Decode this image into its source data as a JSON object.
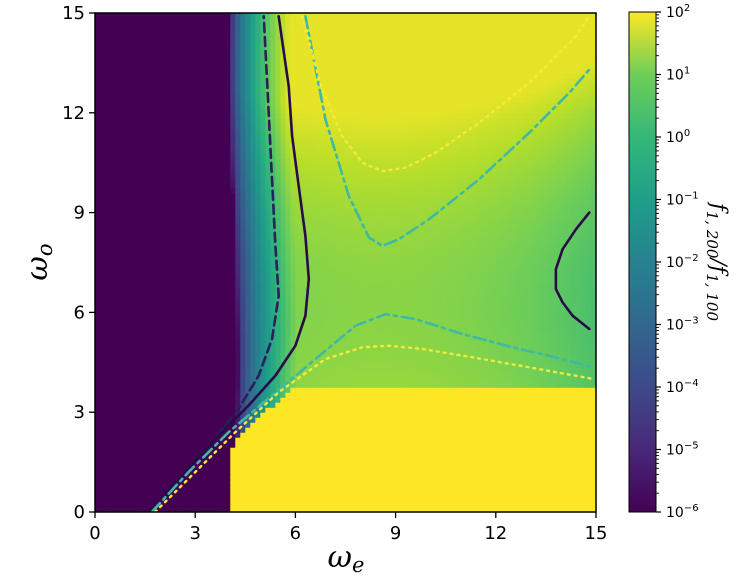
{
  "chart_data": {
    "type": "heatmap",
    "title": "",
    "xlabel": "ω",
    "xlabel_sub": "e",
    "ylabel": "ω",
    "ylabel_sub": "o",
    "xlim": [
      0,
      15
    ],
    "ylim": [
      0,
      15
    ],
    "x_ticks": [
      0,
      3,
      6,
      9,
      12,
      15
    ],
    "y_ticks": [
      0,
      3,
      6,
      9,
      12,
      15
    ],
    "x_tick_labels": [
      "0",
      "3",
      "6",
      "9",
      "12",
      "15"
    ],
    "y_tick_labels": [
      "0",
      "3",
      "6",
      "9",
      "12",
      "15"
    ],
    "colormap": "viridis",
    "colorbar": {
      "label_f": "f",
      "label_num_sub": "1, 200",
      "label_slash": "/",
      "label_den_sub": "1, 100",
      "scale": "log",
      "range": [
        1e-06,
        100
      ],
      "ticks": [
        {
          "base": "10",
          "exp": "2"
        },
        {
          "base": "10",
          "exp": "1"
        },
        {
          "base": "10",
          "exp": "0"
        },
        {
          "base": "10",
          "exp": "−1"
        },
        {
          "base": "10",
          "exp": "−2"
        },
        {
          "base": "10",
          "exp": "−3"
        },
        {
          "base": "10",
          "exp": "−4"
        },
        {
          "base": "10",
          "exp": "−5"
        },
        {
          "base": "10",
          "exp": "−6"
        }
      ]
    },
    "contours": [
      {
        "style": "dashed",
        "color": "#2a1f5a",
        "points": [
          [
            1.7,
            0.1
          ],
          [
            2.6,
            1.1
          ],
          [
            3.5,
            2.1
          ],
          [
            4.3,
            3.1
          ],
          [
            4.9,
            4.1
          ],
          [
            5.3,
            5.2
          ],
          [
            5.5,
            6.5
          ],
          [
            5.4,
            8.0
          ],
          [
            5.3,
            10.0
          ],
          [
            5.2,
            12.0
          ],
          [
            5.1,
            14.0
          ],
          [
            5.05,
            14.9
          ]
        ]
      },
      {
        "style": "solid",
        "color": "#2b0a4a",
        "points": [
          [
            1.6,
            0
          ],
          [
            2.6,
            1.1
          ],
          [
            3.6,
            2.2
          ],
          [
            4.6,
            3.2
          ],
          [
            5.4,
            4.1
          ],
          [
            6.0,
            5.0
          ],
          [
            6.3,
            5.9
          ],
          [
            6.4,
            7.0
          ],
          [
            6.3,
            8.3
          ],
          [
            6.1,
            9.8
          ],
          [
            5.9,
            11.3
          ],
          [
            5.8,
            12.8
          ],
          [
            5.6,
            14.2
          ],
          [
            5.5,
            14.9
          ]
        ]
      },
      {
        "style": "solid",
        "color": "#2b0a4a",
        "points": [
          [
            14.8,
            9.0
          ],
          [
            14.4,
            8.5
          ],
          [
            14.0,
            7.9
          ],
          [
            13.8,
            7.3
          ],
          [
            13.8,
            6.7
          ],
          [
            14.0,
            6.3
          ],
          [
            14.3,
            5.9
          ],
          [
            14.8,
            5.5
          ]
        ]
      },
      {
        "style": "dashdot",
        "color": "#3fb8a4",
        "points": [
          [
            1.7,
            0
          ],
          [
            2.8,
            1.2
          ],
          [
            4.0,
            2.4
          ],
          [
            5.3,
            3.5
          ],
          [
            6.6,
            4.6
          ],
          [
            7.8,
            5.6
          ],
          [
            8.7,
            5.95
          ],
          [
            9.6,
            5.8
          ],
          [
            11.0,
            5.35
          ],
          [
            12.5,
            4.95
          ],
          [
            14.0,
            4.6
          ],
          [
            14.9,
            4.35
          ]
        ]
      },
      {
        "style": "dashdot",
        "color": "#3fb8a4",
        "points": [
          [
            6.3,
            14.9
          ],
          [
            6.9,
            11.8
          ],
          [
            7.6,
            9.5
          ],
          [
            8.2,
            8.25
          ],
          [
            8.6,
            8.0
          ],
          [
            9.1,
            8.2
          ],
          [
            10.0,
            8.8
          ],
          [
            11.5,
            10.0
          ],
          [
            13.0,
            11.4
          ],
          [
            14.2,
            12.6
          ],
          [
            14.8,
            13.3
          ]
        ]
      },
      {
        "style": "dotted",
        "color": "#f4ea3a",
        "points": [
          [
            1.8,
            0
          ],
          [
            3.0,
            1.2
          ],
          [
            4.2,
            2.4
          ],
          [
            5.5,
            3.6
          ],
          [
            6.9,
            4.6
          ],
          [
            8.0,
            4.95
          ],
          [
            8.8,
            5.0
          ],
          [
            9.8,
            4.9
          ],
          [
            11.3,
            4.65
          ],
          [
            13.0,
            4.35
          ],
          [
            14.9,
            4.0
          ]
        ]
      },
      {
        "style": "dotted",
        "color": "#f4ea3a",
        "points": [
          [
            6.2,
            14.9
          ],
          [
            6.8,
            12.7
          ],
          [
            7.4,
            11.3
          ],
          [
            8.0,
            10.5
          ],
          [
            8.6,
            10.25
          ],
          [
            9.3,
            10.35
          ],
          [
            10.2,
            10.8
          ],
          [
            11.5,
            11.7
          ],
          [
            13.0,
            12.9
          ],
          [
            14.4,
            14.3
          ],
          [
            14.8,
            14.9
          ]
        ]
      }
    ]
  }
}
